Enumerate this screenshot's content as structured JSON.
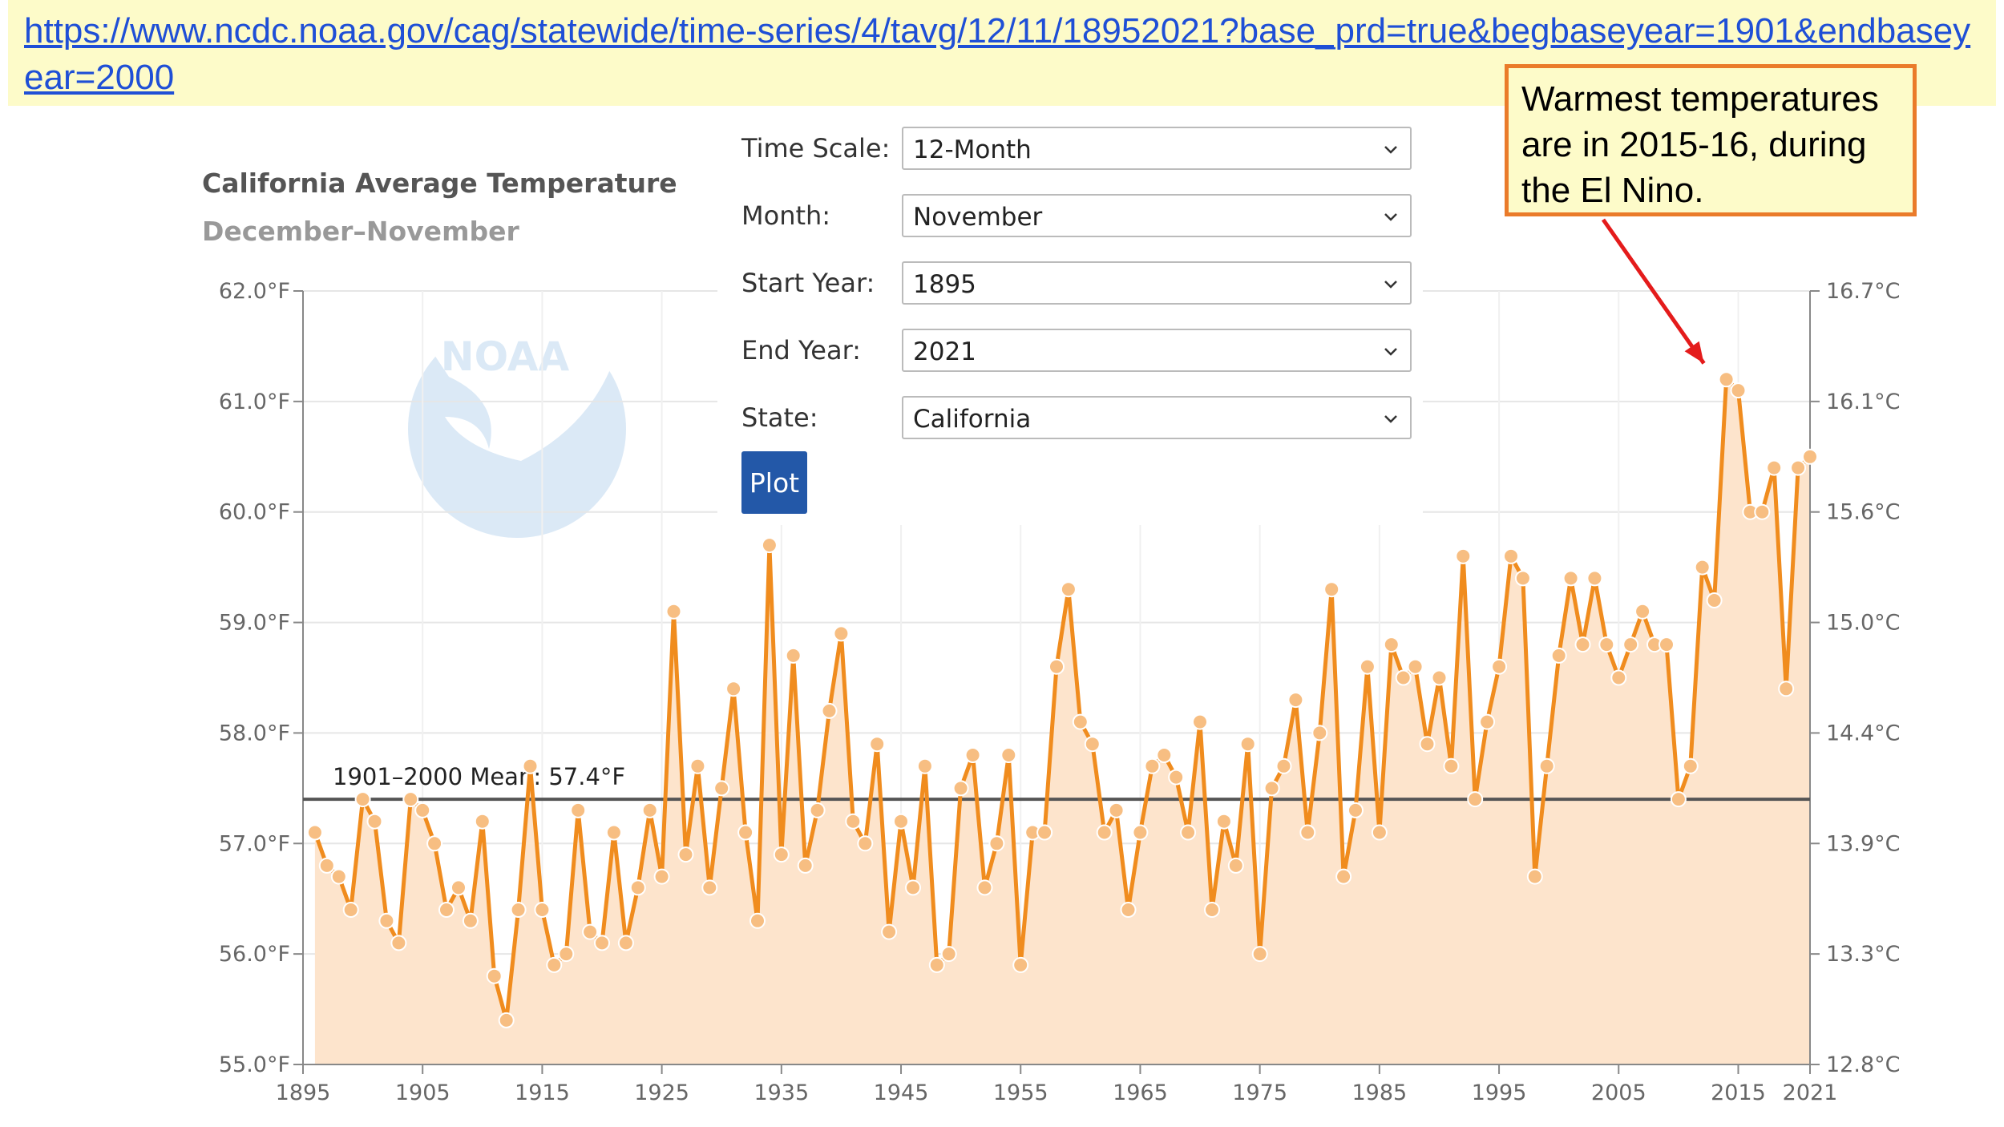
{
  "url": {
    "text": "https://www.ncdc.noaa.gov/cag/statewide/time-series/4/tavg/12/11/18952021?base_prd=true&begbaseyear=1901&endbaseyear=2000"
  },
  "callout": {
    "text": "Warmest temperatures are in 2015-16, during the El Nino."
  },
  "logo": {
    "text": "NOAA"
  },
  "controls": {
    "time_scale": {
      "label": "Time Scale:",
      "value": "12-Month"
    },
    "month": {
      "label": "Month:",
      "value": "November"
    },
    "start_year": {
      "label": "Start Year:",
      "value": "1895"
    },
    "end_year": {
      "label": "End Year:",
      "value": "2021"
    },
    "state": {
      "label": "State:",
      "value": "California"
    },
    "plot_label": "Plot"
  },
  "colors": {
    "series": "#f08c1e",
    "area": "#fde4cc",
    "marker": "#f7be82",
    "mean_line": "#555555",
    "callout_border": "#ea7b2a",
    "callout_bg": "#fdfbc9",
    "arrow": "#e41b1b",
    "plot_button": "#2358a8"
  },
  "chart_data": {
    "type": "area",
    "title": "California Average Temperature",
    "subtitle": "December–November",
    "ylim": [
      55.0,
      62.0
    ],
    "xlim": [
      1895,
      2021
    ],
    "y_ticks": [
      "55.0°F",
      "56.0°F",
      "57.0°F",
      "58.0°F",
      "59.0°F",
      "60.0°F",
      "61.0°F",
      "62.0°F"
    ],
    "y_ticks_right": [
      "12.8°C",
      "13.3°C",
      "13.9°C",
      "14.4°C",
      "15.0°C",
      "15.6°C",
      "16.1°C",
      "16.7°C"
    ],
    "x_ticks": [
      "1895",
      "1905",
      "1915",
      "1925",
      "1935",
      "1945",
      "1955",
      "1965",
      "1975",
      "1985",
      "1995",
      "2005",
      "2015",
      "2021"
    ],
    "mean": {
      "label": "1901–2000 Mean: 57.4°F",
      "value": 57.4
    },
    "annotation_point": {
      "x": 2014,
      "y": 61.2
    },
    "series": [
      {
        "x": [
          1896,
          1897,
          1898,
          1899,
          1900,
          1901,
          1902,
          1903,
          1904,
          1905,
          1906,
          1907,
          1908,
          1909,
          1910,
          1911,
          1912,
          1913,
          1914,
          1915,
          1916,
          1917,
          1918,
          1919,
          1920,
          1921,
          1922,
          1923,
          1924,
          1925,
          1926,
          1927,
          1928,
          1929,
          1930,
          1931,
          1932,
          1933,
          1934,
          1935,
          1936,
          1937,
          1938,
          1939,
          1940,
          1941,
          1942,
          1943,
          1944,
          1945,
          1946,
          1947,
          1948,
          1949,
          1950,
          1951,
          1952,
          1953,
          1954,
          1955,
          1956,
          1957,
          1958,
          1959,
          1960,
          1961,
          1962,
          1963,
          1964,
          1965,
          1966,
          1967,
          1968,
          1969,
          1970,
          1971,
          1972,
          1973,
          1974,
          1975,
          1976,
          1977,
          1978,
          1979,
          1980,
          1981,
          1982,
          1983,
          1984,
          1985,
          1986,
          1987,
          1988,
          1989,
          1990,
          1991,
          1992,
          1993,
          1994,
          1995,
          1996,
          1997,
          1998,
          1999,
          2000,
          2001,
          2002,
          2003,
          2004,
          2005,
          2006,
          2007,
          2008,
          2009,
          2010,
          2011,
          2012,
          2013,
          2014,
          2015,
          2016,
          2017,
          2018,
          2019,
          2020,
          2021
        ],
        "values": [
          57.1,
          56.8,
          56.7,
          56.4,
          57.4,
          57.2,
          56.3,
          56.1,
          57.4,
          57.3,
          57.0,
          56.4,
          56.6,
          56.3,
          57.2,
          55.8,
          55.4,
          56.4,
          57.7,
          56.4,
          55.9,
          56.0,
          57.3,
          56.2,
          56.1,
          57.1,
          56.1,
          56.6,
          57.3,
          56.7,
          59.1,
          56.9,
          57.7,
          56.6,
          57.5,
          58.4,
          57.1,
          56.3,
          59.7,
          56.9,
          58.7,
          56.8,
          57.3,
          58.2,
          58.9,
          57.2,
          57.0,
          57.9,
          56.2,
          57.2,
          56.6,
          57.7,
          55.9,
          56.0,
          57.5,
          57.8,
          56.6,
          57.0,
          57.8,
          55.9,
          57.1,
          57.1,
          58.6,
          59.3,
          58.1,
          57.9,
          57.1,
          57.3,
          56.4,
          57.1,
          57.7,
          57.8,
          57.6,
          57.1,
          58.1,
          56.4,
          57.2,
          56.8,
          57.9,
          56.0,
          57.5,
          57.7,
          58.3,
          57.1,
          58.0,
          59.3,
          56.7,
          57.3,
          58.6,
          57.1,
          58.8,
          58.5,
          58.6,
          57.9,
          58.5,
          57.7,
          59.6,
          57.4,
          58.1,
          58.6,
          59.6,
          59.4,
          56.7,
          57.7,
          58.7,
          59.4,
          58.8,
          59.4,
          58.8,
          58.5,
          58.8,
          59.1,
          58.8,
          58.8,
          57.4,
          57.7,
          59.5,
          59.2,
          61.2,
          61.1,
          60.0,
          60.0,
          60.4,
          58.4,
          60.4,
          60.5
        ]
      }
    ]
  }
}
